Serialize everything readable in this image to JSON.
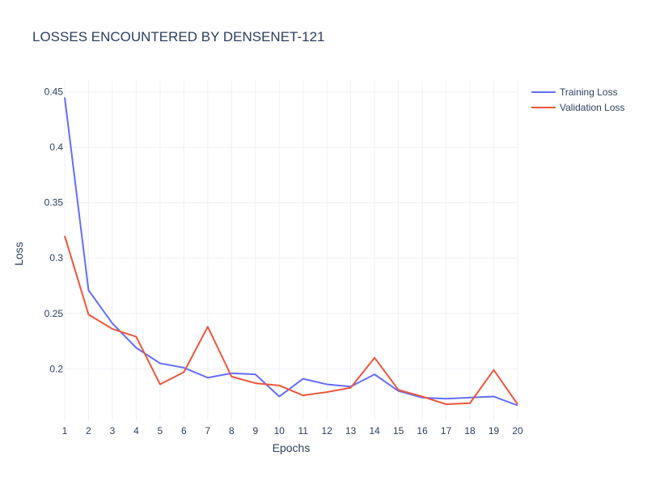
{
  "chart_data": {
    "type": "line",
    "title": "LOSSES ENCOUNTERED BY DENSENET-121",
    "xlabel": "Epochs",
    "ylabel": "Loss",
    "x": [
      1,
      2,
      3,
      4,
      5,
      6,
      7,
      8,
      9,
      10,
      11,
      12,
      13,
      14,
      15,
      16,
      17,
      18,
      19,
      20
    ],
    "xlim": [
      1,
      20
    ],
    "ylim": [
      0.1535,
      0.46
    ],
    "y_ticks": [
      0.2,
      0.25,
      0.3,
      0.35,
      0.4,
      0.45
    ],
    "y_tick_labels": [
      "0.2",
      "0.25",
      "0.3",
      "0.35",
      "0.4",
      "0.45"
    ],
    "x_tick_labels": [
      "1",
      "2",
      "3",
      "4",
      "5",
      "6",
      "7",
      "8",
      "9",
      "10",
      "11",
      "12",
      "13",
      "14",
      "15",
      "16",
      "17",
      "18",
      "19",
      "20"
    ],
    "grid": true,
    "legend_position": "top-right",
    "series": [
      {
        "name": "Training Loss",
        "color": "#636efa",
        "values": [
          0.445,
          0.271,
          0.241,
          0.219,
          0.205,
          0.201,
          0.192,
          0.196,
          0.195,
          0.175,
          0.191,
          0.186,
          0.184,
          0.195,
          0.18,
          0.174,
          0.173,
          0.174,
          0.175,
          0.167
        ]
      },
      {
        "name": "Validation Loss",
        "color": "#ef553b",
        "values": [
          0.32,
          0.249,
          0.236,
          0.229,
          0.186,
          0.197,
          0.238,
          0.193,
          0.187,
          0.185,
          0.176,
          0.179,
          0.183,
          0.21,
          0.181,
          0.175,
          0.168,
          0.169,
          0.199,
          0.168
        ]
      }
    ]
  }
}
